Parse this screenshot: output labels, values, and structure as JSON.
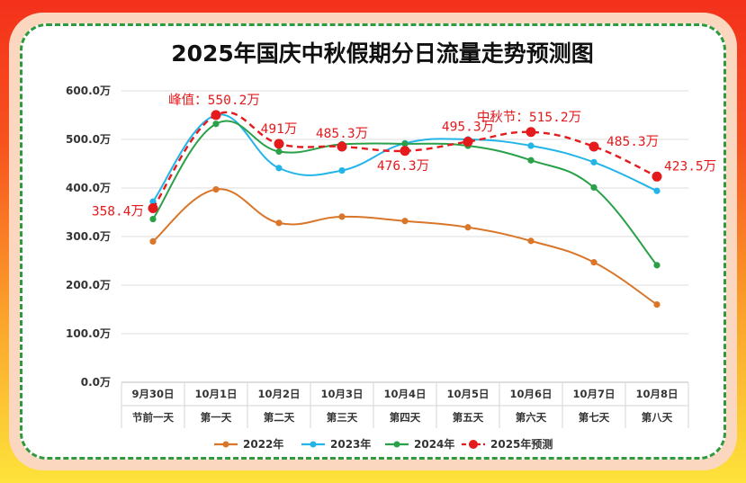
{
  "chart_data": {
    "type": "line",
    "title": "2025年国庆中秋假期分日流量走势预测图",
    "xlabel": "",
    "ylabel": "",
    "ylim": [
      0,
      600
    ],
    "yticks": [
      "0.0万",
      "100.0万",
      "200.0万",
      "300.0万",
      "400.0万",
      "500.0万",
      "600.0万"
    ],
    "ytick_values": [
      0,
      100,
      200,
      300,
      400,
      500,
      600
    ],
    "categories": [
      "9月30日",
      "10月1日",
      "10月2日",
      "10月3日",
      "10月4日",
      "10月5日",
      "10月6日",
      "10月7日",
      "10月8日"
    ],
    "categories_sub": [
      "节前一天",
      "第一天",
      "第二天",
      "第三天",
      "第四天",
      "第五天",
      "第六天",
      "第七天",
      "第八天"
    ],
    "grid": true,
    "legend_position": "bottom",
    "series": [
      {
        "name": "2022年",
        "color": "#d9762a",
        "style": "solid",
        "values": [
          290,
          397,
          328,
          341,
          332,
          319,
          291,
          247,
          160
        ]
      },
      {
        "name": "2023年",
        "color": "#22b5e8",
        "style": "solid",
        "values": [
          372,
          550,
          441,
          436,
          492,
          500,
          487,
          453,
          394
        ]
      },
      {
        "name": "2024年",
        "color": "#2aa048",
        "style": "solid",
        "values": [
          336,
          532,
          475,
          490,
          491,
          487,
          457,
          401,
          241
        ]
      },
      {
        "name": "2025年预测",
        "color": "#e41a1c",
        "style": "dashed",
        "values": [
          358.4,
          550.2,
          491,
          485.3,
          476.3,
          495.3,
          515.2,
          485.3,
          423.5
        ]
      }
    ],
    "data_labels": [
      {
        "series": "2025年预测",
        "index": 0,
        "text": "358.4万"
      },
      {
        "series": "2025年预测",
        "index": 1,
        "text": "峰值：550.2万"
      },
      {
        "series": "2025年预测",
        "index": 2,
        "text": "491万"
      },
      {
        "series": "2025年预测",
        "index": 3,
        "text": "485.3万"
      },
      {
        "series": "2025年预测",
        "index": 4,
        "text": "476.3万"
      },
      {
        "series": "2025年预测",
        "index": 5,
        "text": "495.3万"
      },
      {
        "series": "2025年预测",
        "index": 6,
        "text": "中秋节：515.2万"
      },
      {
        "series": "2025年预测",
        "index": 7,
        "text": "485.3万"
      },
      {
        "series": "2025年预测",
        "index": 8,
        "text": "423.5万"
      }
    ]
  }
}
